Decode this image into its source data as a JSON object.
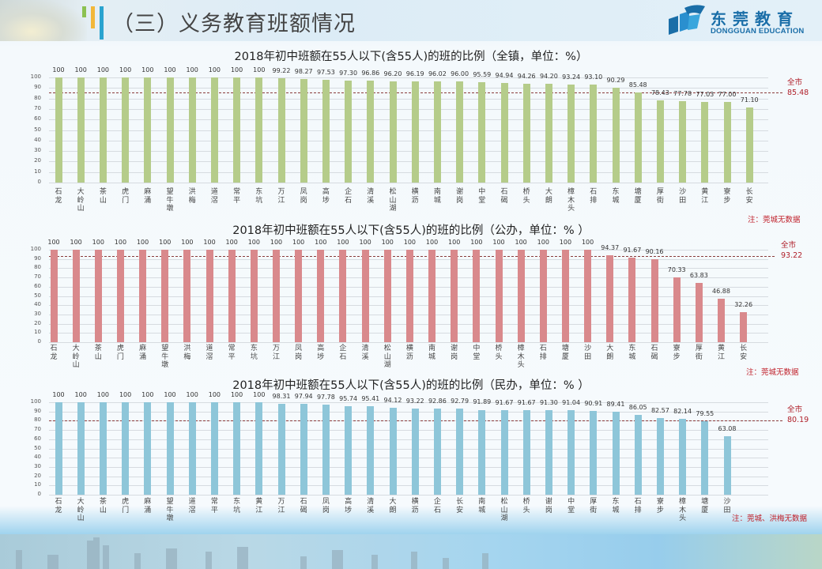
{
  "header": {
    "title": "（三）义务教育班额情况",
    "logo_cn": "东莞教育",
    "logo_en": "DONGGUAN EDUCATION",
    "accent_colors": [
      "#8cc152",
      "#f2b73a",
      "#2aa3cf"
    ]
  },
  "charts": [
    {
      "title": "2018年初中班额在55人以下(含55人)的班的比例（全镇，单位：%）",
      "bar_color": "#b5cc8a",
      "avg_label": "全市",
      "avg_value_text": "85.48",
      "note": "注：莞城无数据"
    },
    {
      "title": "2018年初中班额在55人以下(含55人)的班的比例（公办，单位：%  ）",
      "bar_color": "#d9898c",
      "avg_label": "全市",
      "avg_value_text": "93.22",
      "note": "注：莞城无数据"
    },
    {
      "title": "2018年初中班额在55人以下(含55人)的班的比例（民办，单位：%  ）",
      "bar_color": "#8ec6d9",
      "avg_label": "全市",
      "avg_value_text": "80.19",
      "note": "注：莞城、洪梅无数据"
    }
  ],
  "chart_data": [
    {
      "type": "bar",
      "title": "2018年初中班额在55人以下(含55人)的班的比例（全镇，单位：%）",
      "xlabel": "",
      "ylabel": "",
      "ylim": [
        0,
        100
      ],
      "yticks": [
        0,
        10,
        20,
        30,
        40,
        50,
        60,
        70,
        80,
        90,
        100
      ],
      "grid": true,
      "reference_line": {
        "label": "全市",
        "value": 85.48,
        "style": "dashed"
      },
      "categories": [
        "石龙",
        "大岭山",
        "茶山",
        "虎门",
        "麻涌",
        "望牛墩",
        "洪梅",
        "道滘",
        "常平",
        "东坑",
        "万江",
        "凤岗",
        "高埗",
        "企石",
        "清溪",
        "松山湖",
        "横沥",
        "南城",
        "谢岗",
        "中堂",
        "石碣",
        "桥头",
        "大朗",
        "樟木头",
        "石排",
        "东城",
        "塘厦",
        "厚街",
        "沙田",
        "黄江",
        "寮步",
        "长安"
      ],
      "values": [
        100,
        100,
        100,
        100,
        100,
        100,
        100,
        100,
        100,
        100,
        99.22,
        98.27,
        97.53,
        97.3,
        96.86,
        96.2,
        96.19,
        96.02,
        96.0,
        95.59,
        94.94,
        94.26,
        94.2,
        93.24,
        93.1,
        90.29,
        85.48,
        78.43,
        77.78,
        77.03,
        77.0,
        71.1
      ],
      "value_labels": [
        "100",
        "100",
        "100",
        "100",
        "100",
        "100",
        "100",
        "100",
        "100",
        "100",
        "99.22",
        "98.27",
        "97.53",
        "97.30",
        "96.86",
        "96.20",
        "96.19",
        "96.02",
        "96.00",
        "95.59",
        "94.94",
        "94.26",
        "94.20",
        "93.24",
        "93.10",
        "90.29",
        "85.48",
        "78.43",
        "77.78",
        "77.03",
        "77.00",
        "71.10"
      ],
      "annotation": "注：莞城无数据"
    },
    {
      "type": "bar",
      "title": "2018年初中班额在55人以下(含55人)的班的比例（公办，单位：%  ）",
      "xlabel": "",
      "ylabel": "",
      "ylim": [
        0,
        100
      ],
      "yticks": [
        0,
        10,
        20,
        30,
        40,
        50,
        60,
        70,
        80,
        90,
        100
      ],
      "grid": true,
      "reference_line": {
        "label": "全市",
        "value": 93.22,
        "style": "dashed"
      },
      "categories": [
        "石龙",
        "大岭山",
        "茶山",
        "虎门",
        "麻涌",
        "望牛墩",
        "洪梅",
        "道滘",
        "常平",
        "东坑",
        "万江",
        "凤岗",
        "高埗",
        "企石",
        "清溪",
        "松山湖",
        "横沥",
        "南城",
        "谢岗",
        "中堂",
        "桥头",
        "樟木头",
        "石排",
        "塘厦",
        "沙田",
        "大朗",
        "东城",
        "石碣",
        "寮步",
        "厚街",
        "黄江",
        "长安"
      ],
      "values": [
        100,
        100,
        100,
        100,
        100,
        100,
        100,
        100,
        100,
        100,
        100,
        100,
        100,
        100,
        100,
        100,
        100,
        100,
        100,
        100,
        100,
        100,
        100,
        100,
        100,
        94.37,
        91.67,
        90.16,
        70.33,
        63.83,
        46.88,
        32.26
      ],
      "value_labels": [
        "100",
        "100",
        "100",
        "100",
        "100",
        "100",
        "100",
        "100",
        "100",
        "100",
        "100",
        "100",
        "100",
        "100",
        "100",
        "100",
        "100",
        "100",
        "100",
        "100",
        "100",
        "100",
        "100",
        "100",
        "100",
        "94.37",
        "91.67",
        "90.16",
        "70.33",
        "63.83",
        "46.88",
        "32.26"
      ],
      "annotation": "注：莞城无数据"
    },
    {
      "type": "bar",
      "title": "2018年初中班额在55人以下(含55人)的班的比例（民办，单位：%  ）",
      "xlabel": "",
      "ylabel": "",
      "ylim": [
        0,
        100
      ],
      "yticks": [
        0,
        10,
        20,
        30,
        40,
        50,
        60,
        70,
        80,
        90,
        100
      ],
      "grid": true,
      "reference_line": {
        "label": "全市",
        "value": 80.19,
        "style": "dashed"
      },
      "categories": [
        "石龙",
        "大岭山",
        "茶山",
        "虎门",
        "麻涌",
        "望牛墩",
        "道滘",
        "常平",
        "东坑",
        "黄江",
        "万江",
        "石碣",
        "凤岗",
        "高埗",
        "清溪",
        "大朗",
        "横沥",
        "企石",
        "长安",
        "南城",
        "松山湖",
        "桥头",
        "谢岗",
        "中堂",
        "厚街",
        "东城",
        "石排",
        "寮步",
        "樟木头",
        "塘厦",
        "沙田"
      ],
      "values": [
        100,
        100,
        100,
        100,
        100,
        100,
        100,
        100,
        100,
        100,
        98.31,
        97.94,
        97.78,
        95.74,
        95.41,
        94.12,
        93.22,
        92.86,
        92.79,
        91.89,
        91.67,
        91.67,
        91.3,
        91.04,
        90.91,
        89.41,
        86.05,
        82.57,
        82.14,
        79.55,
        63.08
      ],
      "value_labels": [
        "100",
        "100",
        "100",
        "100",
        "100",
        "100",
        "100",
        "100",
        "100",
        "100",
        "98.31",
        "97.94",
        "97.78",
        "95.74",
        "95.41",
        "94.12",
        "93.22",
        "92.86",
        "92.79",
        "91.89",
        "91.67",
        "91.67",
        "91.30",
        "91.04",
        "90.91",
        "89.41",
        "86.05",
        "82.57",
        "82.14",
        "79.55",
        "63.08"
      ],
      "annotation": "注：莞城、洪梅无数据"
    }
  ]
}
